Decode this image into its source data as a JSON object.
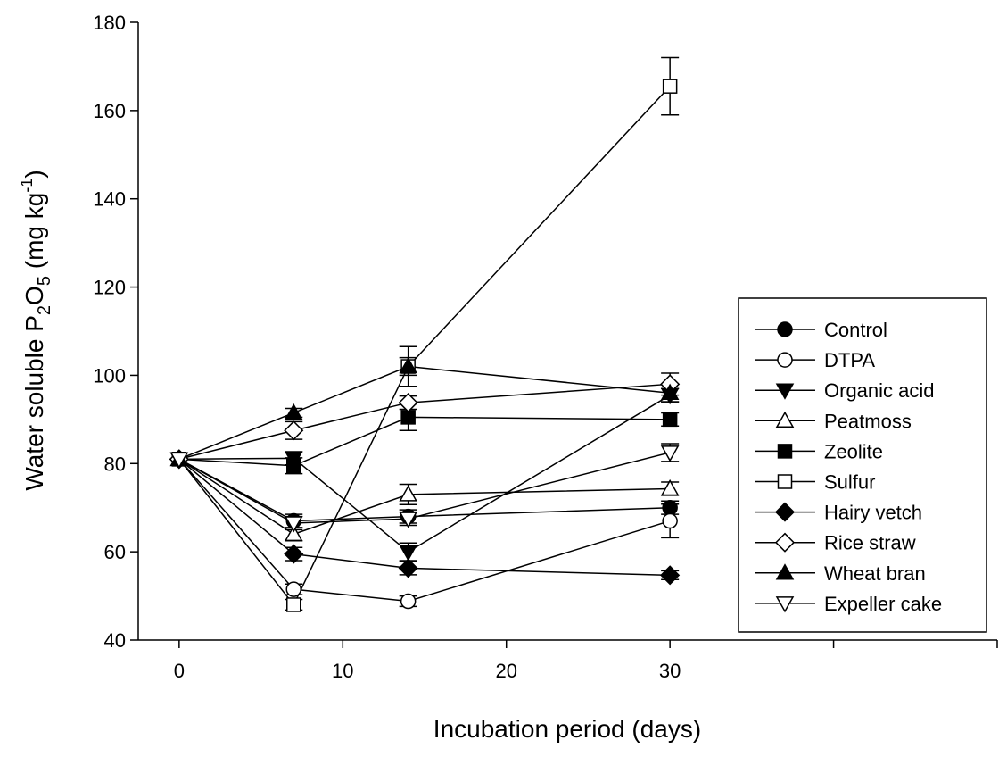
{
  "chart_data": {
    "type": "line",
    "title": "",
    "xlabel": "Incubation period (days)",
    "ylabel": {
      "text": "Water soluble P",
      "sub1": "2",
      "mid": "O",
      "sub2": "5",
      "unit_open": " (mg kg",
      "sup": "-1",
      "unit_close": ")"
    },
    "xlim": [
      -2.5,
      50
    ],
    "ylim": [
      40,
      180
    ],
    "x_ticks": [
      0,
      10,
      20,
      30
    ],
    "y_ticks": [
      40,
      60,
      80,
      100,
      120,
      140,
      160,
      180
    ],
    "legend_position": "right",
    "x": [
      0,
      7,
      14,
      30
    ],
    "series": [
      {
        "name": "Control",
        "marker": "circle",
        "filled": true,
        "values": [
          81,
          67,
          68,
          70
        ],
        "errors": [
          0.8,
          1.5,
          1.5,
          1.5
        ]
      },
      {
        "name": "DTPA",
        "marker": "circle",
        "filled": false,
        "values": [
          81,
          51.5,
          48.8,
          67
        ],
        "errors": [
          0.8,
          1.2,
          1.2,
          3.8
        ]
      },
      {
        "name": "Organic acid",
        "marker": "triangle-down",
        "filled": true,
        "values": [
          81,
          81.2,
          60,
          95.5
        ],
        "errors": [
          0.8,
          1.5,
          2.0,
          1.5
        ]
      },
      {
        "name": "Peatmoss",
        "marker": "triangle-up",
        "filled": false,
        "values": [
          81,
          64,
          73,
          74.3
        ],
        "errors": [
          0.8,
          1.5,
          2.3,
          1.5
        ]
      },
      {
        "name": "Zeolite",
        "marker": "square",
        "filled": true,
        "values": [
          81,
          79.5,
          90.5,
          90
        ],
        "errors": [
          0.8,
          1.8,
          3.0,
          1.5
        ]
      },
      {
        "name": "Sulfur",
        "marker": "square",
        "filled": false,
        "values": [
          81,
          48,
          102,
          165.5
        ],
        "errors": [
          0.8,
          1.2,
          4.5,
          6.5
        ]
      },
      {
        "name": "Hairy vetch",
        "marker": "diamond",
        "filled": true,
        "values": [
          81,
          59.5,
          56.3,
          54.7
        ],
        "errors": [
          0.8,
          1.5,
          1.5,
          1.0
        ]
      },
      {
        "name": "Rice straw",
        "marker": "diamond",
        "filled": false,
        "values": [
          81,
          87.5,
          93.8,
          98
        ],
        "errors": [
          0.8,
          2.0,
          1.5,
          2.5
        ]
      },
      {
        "name": "Wheat bran",
        "marker": "triangle-up",
        "filled": true,
        "values": [
          81,
          91.5,
          102,
          96
        ],
        "errors": [
          0.8,
          1.0,
          2.0,
          2.0
        ]
      },
      {
        "name": "Expeller cake",
        "marker": "triangle-down",
        "filled": false,
        "values": [
          81,
          66.5,
          67.5,
          82.5
        ],
        "errors": [
          0.8,
          1.5,
          1.5,
          2.0
        ]
      }
    ]
  }
}
